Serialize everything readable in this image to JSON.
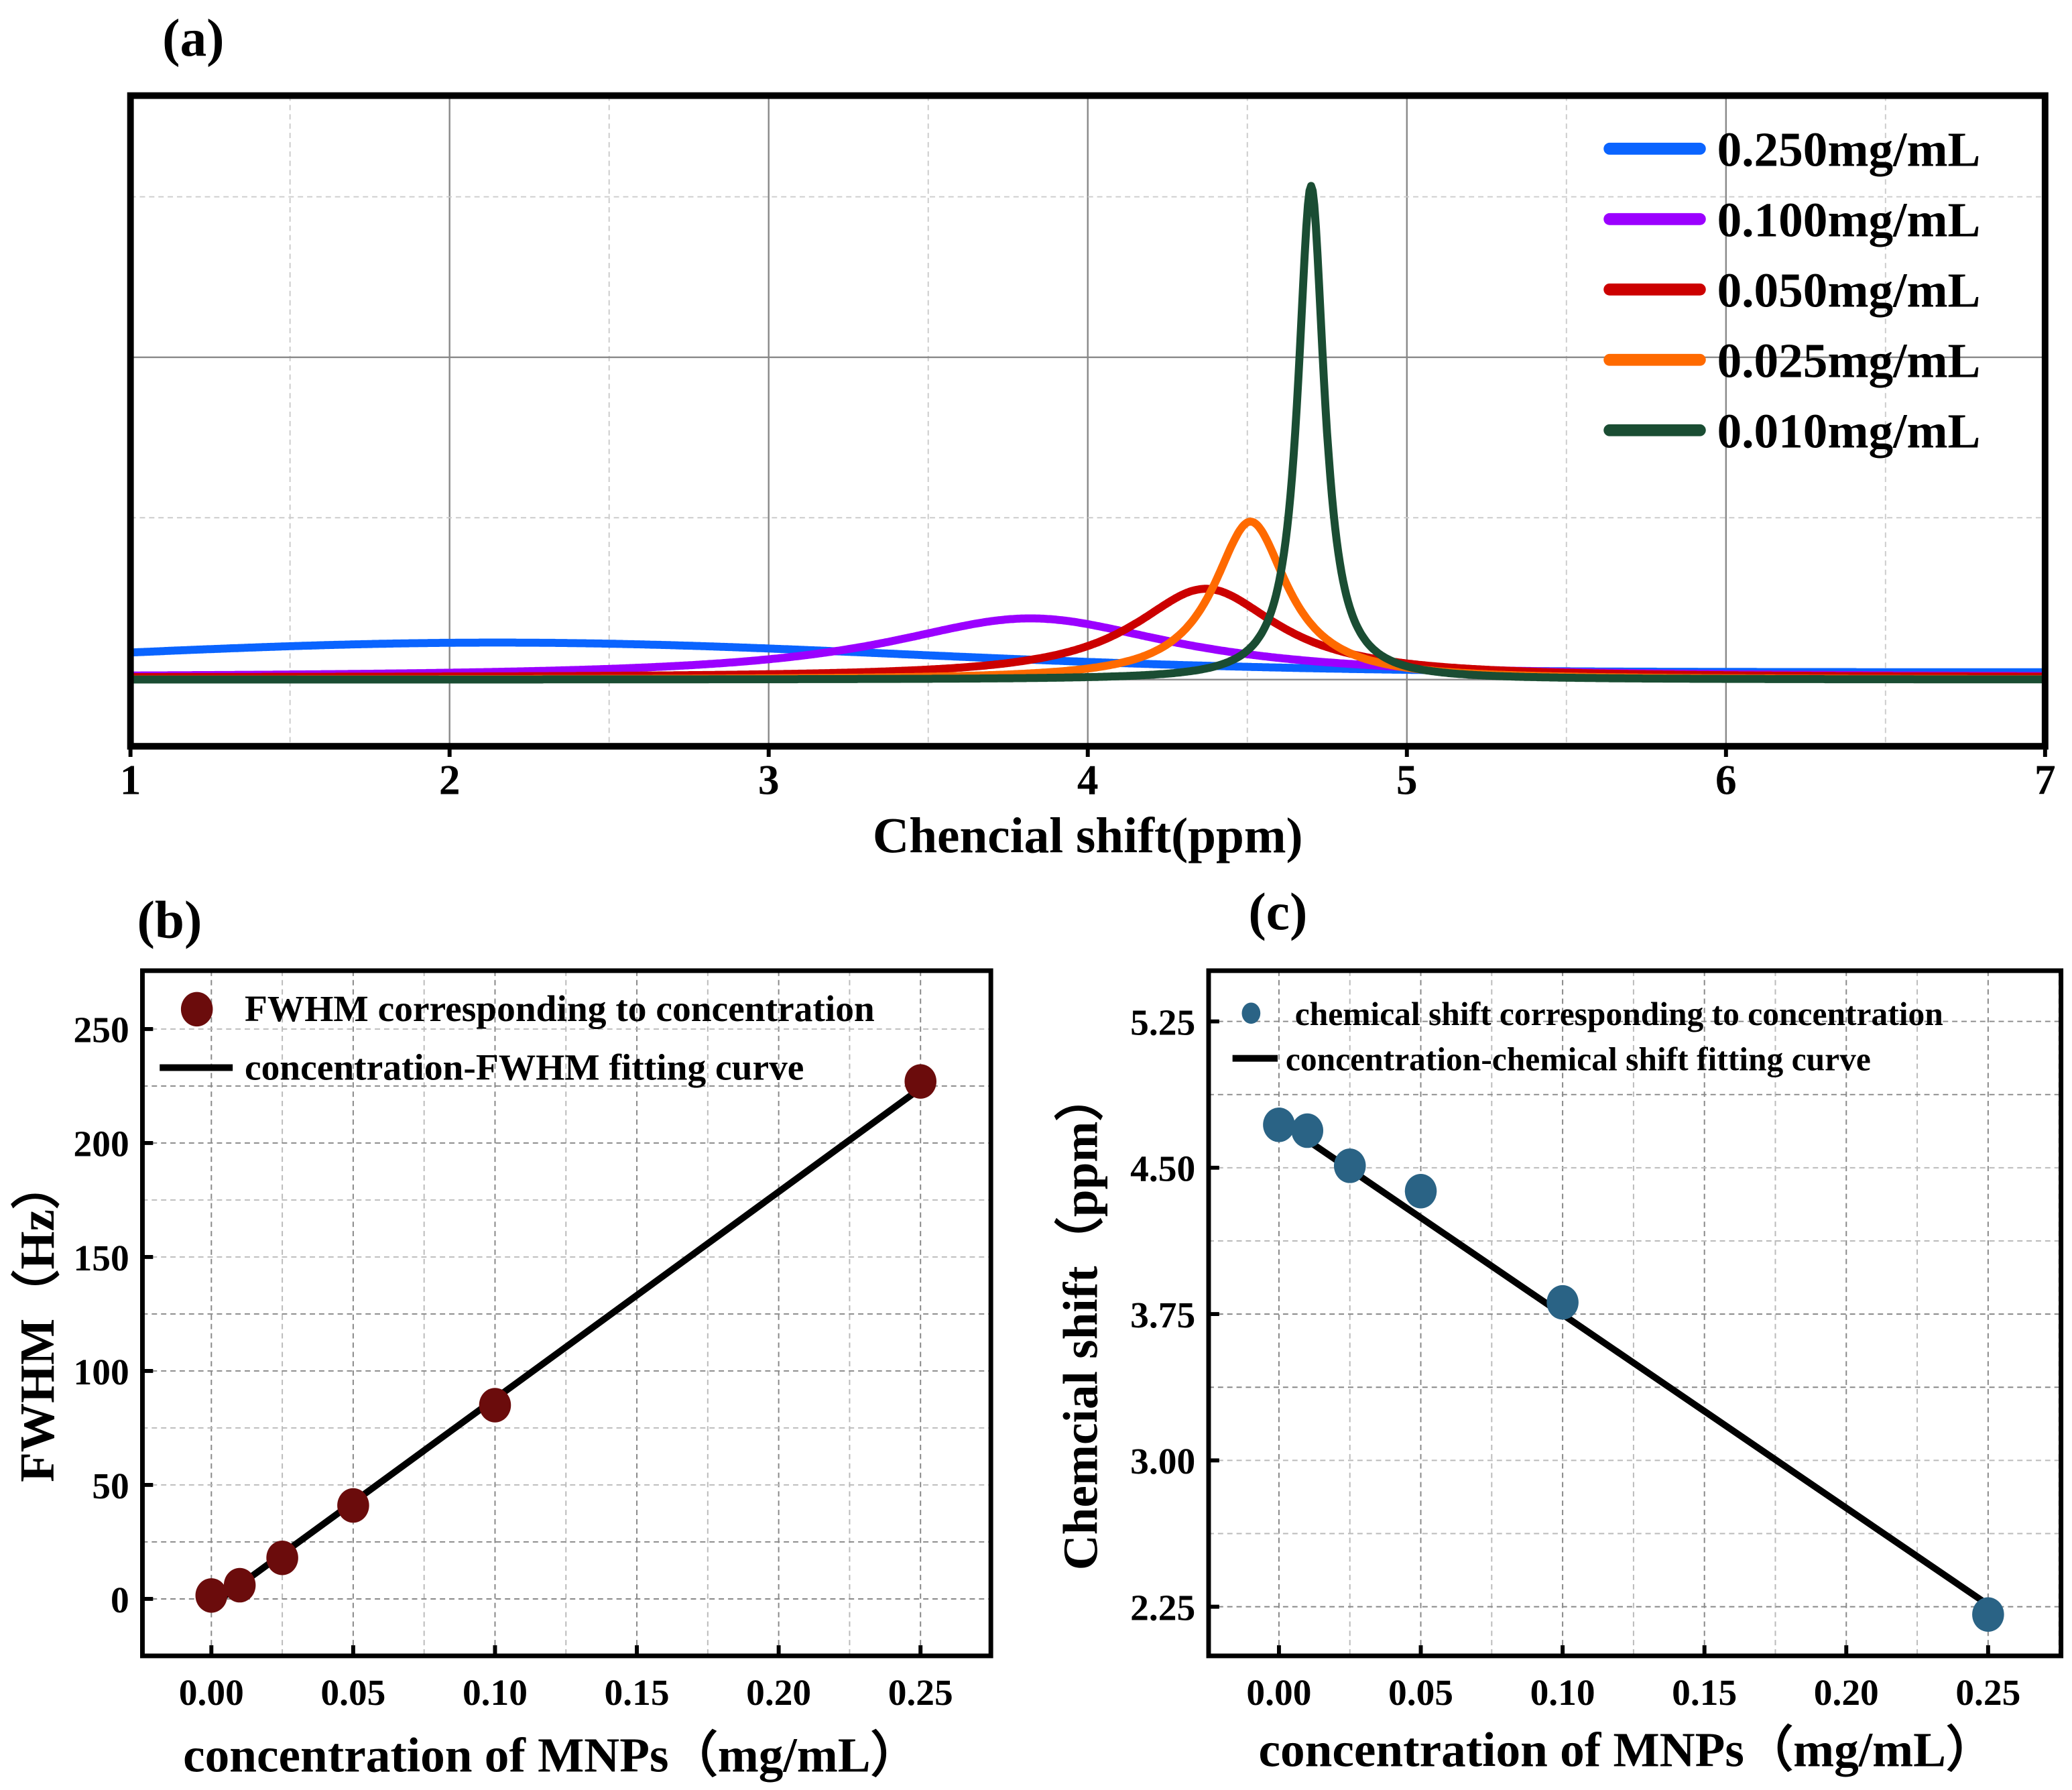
{
  "chart_data": [
    {
      "panel": "(a)",
      "type": "line",
      "xlabel": "Chencial shift(ppm)",
      "ylabel": "",
      "xlim": [
        1,
        7
      ],
      "ylim": [
        -0.135,
        1.183
      ],
      "xticks": [
        "1",
        "2",
        "3",
        "4",
        "5",
        "6",
        "7"
      ],
      "grid": true,
      "legend_position": "top-right",
      "series": [
        {
          "name": "0.250mg/mL",
          "color": "#0a64ff",
          "peak_ppm": 2.15,
          "relative_intensity": 0.06,
          "fwhm_ppm": 3.0,
          "offset": 0.015,
          "shape": "gaussian"
        },
        {
          "name": "0.100mg/mL",
          "color": "#9b00ff",
          "peak_ppm": 3.82,
          "relative_intensity": 0.12,
          "fwhm_ppm": 1.1,
          "offset": 0.004,
          "shape": "lorentzian"
        },
        {
          "name": "0.050mg/mL",
          "color": "#cc0000",
          "peak_ppm": 4.37,
          "relative_intensity": 0.18,
          "fwhm_ppm": 0.55,
          "offset": 0.004,
          "shape": "lorentzian"
        },
        {
          "name": "0.025mg/mL",
          "color": "#ff6a00",
          "peak_ppm": 4.51,
          "relative_intensity": 0.32,
          "fwhm_ppm": 0.28,
          "offset": 0.0,
          "shape": "lorentzian"
        },
        {
          "name": "0.010mg/mL",
          "color": "#1a4d33",
          "peak_ppm": 4.7,
          "relative_intensity": 1.0,
          "fwhm_ppm": 0.1,
          "offset": 0.0,
          "shape": "lorentzian"
        }
      ]
    },
    {
      "panel": "(b)",
      "type": "scatter",
      "xlabel": "concentration of MNPs（mg/mL）",
      "ylabel": "FWHM（Hz）",
      "xlim": [
        -0.0243,
        0.2748
      ],
      "ylim": [
        -25,
        275.6
      ],
      "xticks": [
        "0.00",
        "0.05",
        "0.10",
        "0.15",
        "0.20",
        "0.25"
      ],
      "yticks": [
        "0",
        "50",
        "100",
        "150",
        "200",
        "250"
      ],
      "grid": true,
      "legend_position": "top-left",
      "point_color": "#6b0c0c",
      "series": [
        {
          "name": "FWHM corresponding to concentration",
          "x": [
            0,
            0.01,
            0.025,
            0.05,
            0.1,
            0.25
          ],
          "y": [
            1.5,
            6,
            18,
            41,
            85,
            227
          ]
        },
        {
          "name": "concentration-FWHM fitting curve",
          "x": [
            0,
            0.25
          ],
          "y": [
            -3,
            224
          ]
        }
      ]
    },
    {
      "panel": "(c)",
      "type": "scatter",
      "xlabel": "concentration of MNPs（mg/mL）",
      "ylabel": "Chemcial shift（ppm）",
      "xlim": [
        -0.0248,
        0.2757
      ],
      "ylim": [
        1.998,
        5.51
      ],
      "xticks": [
        "0.00",
        "0.05",
        "0.10",
        "0.15",
        "0.20",
        "0.25"
      ],
      "yticks": [
        "2.25",
        "3.00",
        "3.75",
        "4.50",
        "5.25"
      ],
      "grid": true,
      "legend_position": "top-left",
      "point_color": "#2a6385",
      "series": [
        {
          "name": "chemical shift corresponding to concentration",
          "x": [
            0,
            0.01,
            0.025,
            0.05,
            0.1,
            0.25
          ],
          "y": [
            4.72,
            4.69,
            4.51,
            4.38,
            3.81,
            2.21
          ]
        },
        {
          "name": "concentration-chemical shift fitting curve",
          "x": [
            0,
            0.25
          ],
          "y": [
            4.74,
            2.26
          ]
        }
      ]
    }
  ]
}
